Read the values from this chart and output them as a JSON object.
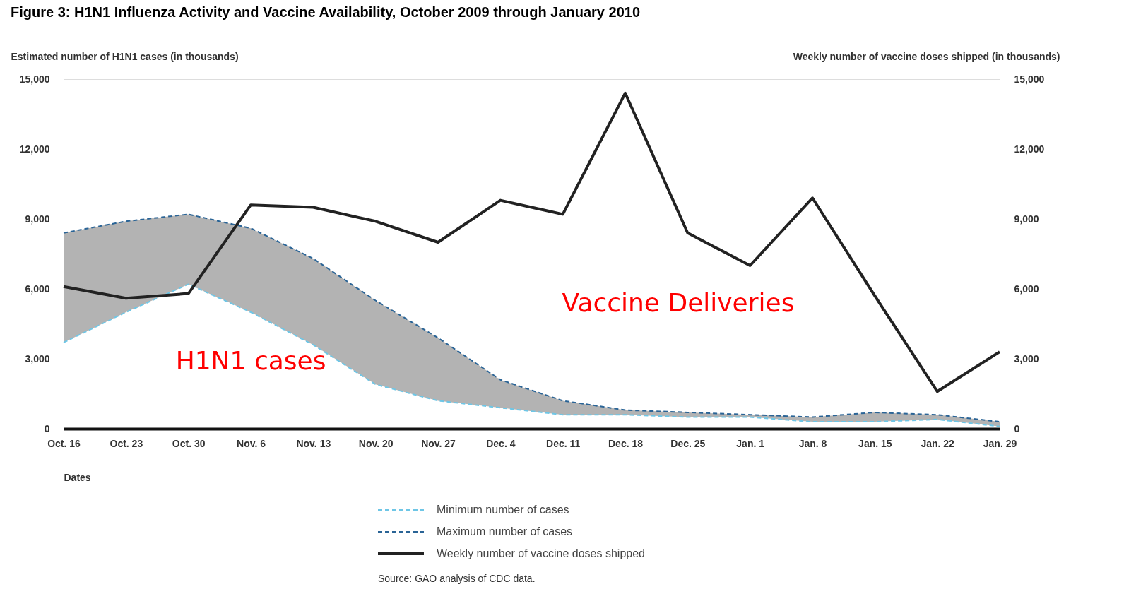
{
  "chart_data": {
    "type": "line",
    "title": "Figure 3: H1N1 Influenza Activity and Vaccine Availability, October 2009 through January 2010",
    "xlabel": "Dates",
    "ylabel": "Estimated number of H1N1 cases (in thousands)",
    "y2label": "Weekly number of vaccine doses shipped (in thousands)",
    "categories": [
      "Oct. 16",
      "Oct. 23",
      "Oct. 30",
      "Nov. 6",
      "Nov. 13",
      "Nov. 20",
      "Nov. 27",
      "Dec. 4",
      "Dec. 11",
      "Dec. 18",
      "Dec. 25",
      "Jan. 1",
      "Jan. 8",
      "Jan. 15",
      "Jan. 22",
      "Jan. 29"
    ],
    "series": [
      {
        "name": "Minimum number of cases",
        "color": "#6ec6e6",
        "line_style": "dashed",
        "values": [
          3700,
          5000,
          6200,
          5000,
          3600,
          1900,
          1200,
          900,
          600,
          600,
          500,
          500,
          300,
          300,
          400,
          100
        ]
      },
      {
        "name": "Maximum number of cases",
        "color": "#2a6496",
        "line_style": "dashed",
        "values": [
          8400,
          8900,
          9200,
          8600,
          7300,
          5500,
          3900,
          2100,
          1200,
          800,
          700,
          600,
          500,
          700,
          600,
          300
        ],
        "lower": [
          3700,
          5000,
          6200,
          5000,
          3600,
          1900,
          1200,
          900,
          600,
          600,
          500,
          500,
          300,
          300,
          400,
          100
        ],
        "upper": [
          8400,
          8900,
          9200,
          8600,
          7300,
          5500,
          3900,
          2100,
          1200,
          800,
          700,
          600,
          500,
          700,
          600,
          300
        ]
      },
      {
        "name": "Weekly number of vaccine doses shipped",
        "color": "#222222",
        "line_style": "solid",
        "axis": "y2",
        "values": [
          6100,
          5600,
          5800,
          9600,
          9500,
          8900,
          8000,
          9800,
          9200,
          14400,
          8400,
          7000,
          9900,
          5700,
          1600,
          3300
        ]
      }
    ],
    "ylim": [
      0,
      15000
    ],
    "yticks": [
      0,
      {
        "value": 3000,
        "label": "3,000"
      },
      {
        "value": 6000,
        "label": "6,000"
      },
      {
        "value": 9000,
        "label": "9,000"
      },
      {
        "value": 12000,
        "label": "12,000"
      },
      {
        "value": 15000,
        "label": "15,000"
      }
    ],
    "y2lim": [
      0,
      15000
    ],
    "y2ticks": [
      0,
      {
        "value": 3000,
        "label": "3,000"
      },
      {
        "value": 6000,
        "label": "6,000"
      },
      {
        "value": 9000,
        "label": "9,000"
      },
      {
        "value": 12000,
        "label": "12,000"
      },
      {
        "value": 15000,
        "label": "15,000"
      }
    ],
    "grid": false,
    "legend": "bottom",
    "annotations": [
      "H1N1 cases",
      "Vaccine Deliveries",
      "Source: GAO analysis of CDC data."
    ]
  }
}
